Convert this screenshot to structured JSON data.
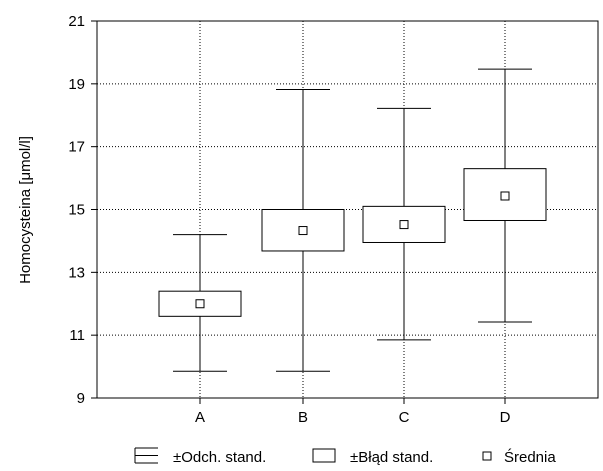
{
  "chart_data": {
    "type": "box",
    "ylabel": "Homocysteina [μmol/l]",
    "ylim": [
      9,
      21
    ],
    "yticks": [
      9,
      11,
      13,
      15,
      17,
      19,
      21
    ],
    "categories": [
      "A",
      "B",
      "C",
      "D"
    ],
    "grid": true,
    "legend_position": "bottom",
    "groups": [
      {
        "name": "A",
        "mean": 12.0,
        "se_low": 11.6,
        "se_high": 12.4,
        "sd_low": 9.85,
        "sd_high": 14.2
      },
      {
        "name": "B",
        "mean": 14.33,
        "se_low": 13.68,
        "se_high": 15.0,
        "sd_low": 9.85,
        "sd_high": 18.82
      },
      {
        "name": "C",
        "mean": 14.52,
        "se_low": 13.95,
        "se_high": 15.1,
        "sd_low": 10.85,
        "sd_high": 18.22
      },
      {
        "name": "D",
        "mean": 15.43,
        "se_low": 14.65,
        "se_high": 16.3,
        "sd_low": 11.42,
        "sd_high": 19.47
      }
    ],
    "legend": {
      "sd_label": "±Odch. stand.",
      "se_label": "±Błąd stand.",
      "mean_label": "Średnia"
    }
  }
}
